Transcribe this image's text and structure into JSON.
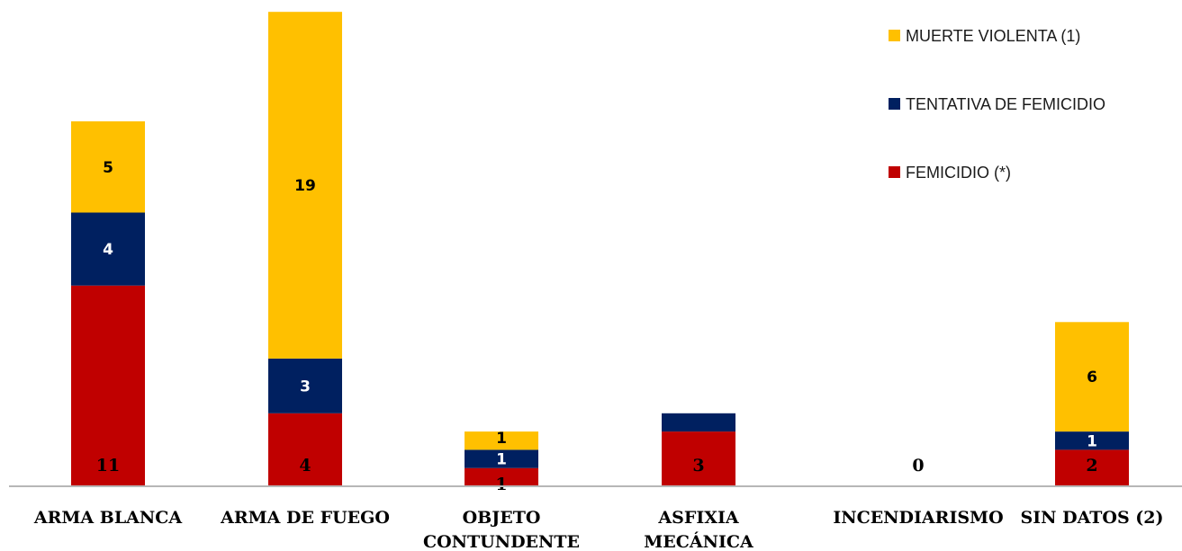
{
  "chart_data": {
    "type": "bar",
    "stacked": true,
    "categories": [
      [
        "ARMA BLANCA"
      ],
      [
        "ARMA DE FUEGO"
      ],
      [
        "OBJETO",
        "CONTUNDENTE"
      ],
      [
        "ASFIXIA",
        "MECÁNICA"
      ],
      [
        "INCENDIARISMO"
      ],
      [
        "SIN DATOS (2)"
      ]
    ],
    "series": [
      {
        "name": "FEMICIDIO (*)",
        "color": "#C00000",
        "values": [
          11,
          4,
          1,
          3,
          0,
          2
        ]
      },
      {
        "name": "TENTATIVA DE FEMICIDIO",
        "color": "#002060",
        "values": [
          4,
          3,
          1,
          1,
          0,
          1
        ]
      },
      {
        "name": "MUERTE VIOLENTA (1)",
        "color": "#FFC000",
        "values": [
          5,
          19,
          1,
          0,
          0,
          6
        ]
      }
    ],
    "data_labels": [
      [
        "11",
        "4",
        "1",
        "3",
        "0",
        "2"
      ],
      [
        "4",
        "3",
        "1",
        "",
        "",
        "1"
      ],
      [
        "5",
        "19",
        "1",
        "",
        "",
        "6"
      ]
    ],
    "ylim": [
      0,
      26
    ],
    "legend_position": "top-right",
    "grid": false
  }
}
